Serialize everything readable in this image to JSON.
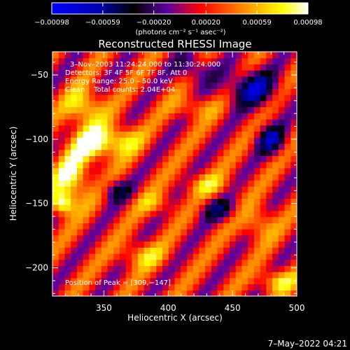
{
  "chart_data": {
    "type": "heatmap",
    "title": "Reconstructed RHESSI Image",
    "xlabel": "Heliocentric X (arcsec)",
    "ylabel": "Heliocentric Y (arcsec)",
    "xlim": [
      310,
      500
    ],
    "ylim": [
      -222,
      -32
    ],
    "x_ticks": [
      350,
      400,
      450,
      500
    ],
    "x_tick_labels": [
      "350",
      "400",
      "450",
      "500"
    ],
    "y_ticks": [
      -50,
      -100,
      -150,
      -200
    ],
    "y_tick_labels": [
      "−50",
      "−100",
      "−150",
      "−200"
    ],
    "colorbar": {
      "range": [
        -0.00098,
        0.00098
      ],
      "ticks": [
        -0.00098,
        -0.00059,
        -0.0002,
        0.0002,
        0.00059,
        0.00098
      ],
      "tick_labels": [
        "−0.00098",
        "−0.00059",
        "−0.00020",
        "0.00020",
        "0.00059",
        "0.00098"
      ],
      "units_label": "(photons cm⁻² s⁻¹ asec⁻²)",
      "colors": [
        "#0000ff",
        "#000000",
        "#5a00a0",
        "#ff0000",
        "#ff8c00",
        "#ffffff"
      ]
    },
    "annotations": {
      "time_range": "3–Nov–2003 11:24:24.000 to 11:30:24.000",
      "detectors": "Detectors: 3F 4F 5F 6F 7F 8F, Att 0",
      "energy_range": "Energy Range: 25.0 – 50.0 keV",
      "clean_counts": "Clean    Total counts: 2.04E+04",
      "peak": "Position of Peak = [309,−147]"
    },
    "peak_position": [
      309,
      -147
    ],
    "grid": false,
    "grid_size": [
      40,
      40
    ],
    "background_value": 0.0002,
    "sources": [
      {
        "x": 342,
        "y": -103,
        "sigma_x": 12,
        "sigma_y": 9,
        "amp": 0.0008
      },
      {
        "x": 335,
        "y": -75,
        "sigma_x": 10,
        "sigma_y": 10,
        "amp": 0.00065
      },
      {
        "x": 325,
        "y": -130,
        "sigma_x": 10,
        "sigma_y": 14,
        "amp": 0.0007
      },
      {
        "x": 318,
        "y": -150,
        "sigma_x": 6,
        "sigma_y": 6,
        "amp": 0.0008
      },
      {
        "x": 365,
        "y": -100,
        "sigma_x": 10,
        "sigma_y": 8,
        "amp": 0.0005
      },
      {
        "x": 380,
        "y": -190,
        "sigma_x": 12,
        "sigma_y": 7,
        "amp": 0.00045
      },
      {
        "x": 470,
        "y": -165,
        "sigma_x": 9,
        "sigma_y": 9,
        "amp": 0.00045
      },
      {
        "x": 485,
        "y": -210,
        "sigma_x": 10,
        "sigma_y": 6,
        "amp": 0.00055
      },
      {
        "x": 430,
        "y": -135,
        "sigma_x": 12,
        "sigma_y": 6,
        "amp": 0.0004
      },
      {
        "x": 420,
        "y": -75,
        "sigma_x": 12,
        "sigma_y": 6,
        "amp": 0.00035
      },
      {
        "x": 390,
        "y": -150,
        "sigma_x": 10,
        "sigma_y": 6,
        "amp": 0.00035
      },
      {
        "x": 465,
        "y": -60,
        "sigma_x": 14,
        "sigma_y": 10,
        "amp": -0.0008
      },
      {
        "x": 480,
        "y": -100,
        "sigma_x": 8,
        "sigma_y": 8,
        "amp": -0.0007
      },
      {
        "x": 420,
        "y": -45,
        "sigma_x": 10,
        "sigma_y": 8,
        "amp": -0.0005
      },
      {
        "x": 440,
        "y": -155,
        "sigma_x": 10,
        "sigma_y": 6,
        "amp": -0.0005
      },
      {
        "x": 360,
        "y": -140,
        "sigma_x": 8,
        "sigma_y": 6,
        "amp": -0.0005
      }
    ],
    "ripple": {
      "amp": 0.0003,
      "kx": 0.155,
      "ky": -0.12
    }
  },
  "footer": {
    "date": "7–May–2022 04:21"
  }
}
